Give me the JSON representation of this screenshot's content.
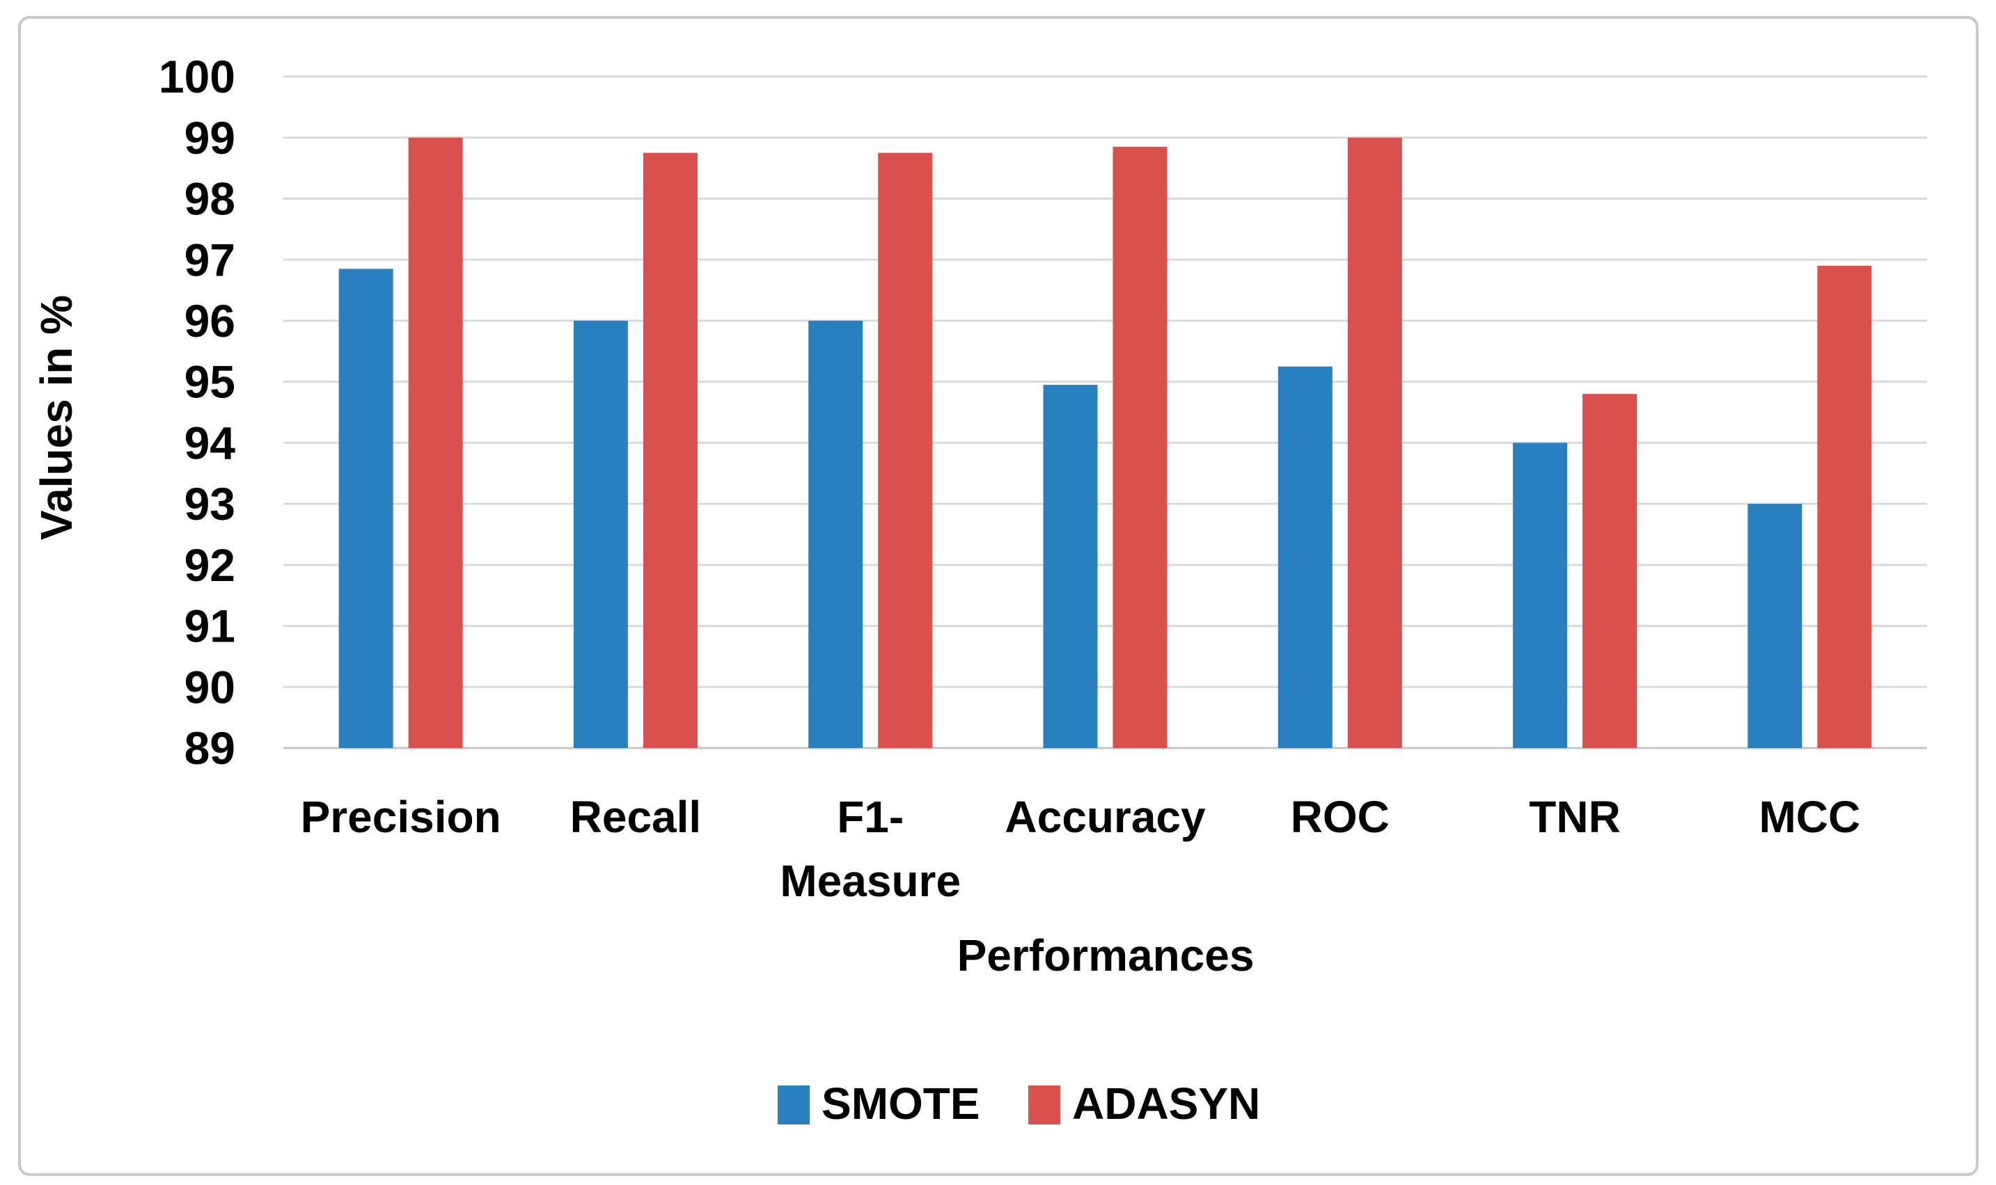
{
  "chart_data": {
    "type": "bar",
    "title": "",
    "categories": [
      "Precision",
      "Recall",
      "F1-Measure",
      "Accuracy",
      "ROC",
      "TNR",
      "MCC"
    ],
    "category_lines": [
      [
        "Precision"
      ],
      [
        "Recall"
      ],
      [
        "F1-",
        "Measure"
      ],
      [
        "Accuracy"
      ],
      [
        "ROC"
      ],
      [
        "TNR"
      ],
      [
        "MCC"
      ]
    ],
    "series": [
      {
        "name": "SMOTE",
        "color": "#2A7FBE",
        "values": [
          96.85,
          96.0,
          96.0,
          94.95,
          95.25,
          94.0,
          93.0
        ]
      },
      {
        "name": "ADASYN",
        "color": "#D9504C",
        "values": [
          99.0,
          98.75,
          98.75,
          98.85,
          99.0,
          94.8,
          96.9
        ]
      }
    ],
    "xlabel": "Performances",
    "ylabel": "Values in %",
    "ylim": [
      89,
      100
    ],
    "yticks": [
      89,
      90,
      91,
      92,
      93,
      94,
      95,
      96,
      97,
      98,
      99,
      100
    ],
    "grid": "horizontal",
    "legend_position": "bottom-center"
  },
  "style": {
    "background": "#FFFFFF",
    "frame_border": "#C9C9C9",
    "gridline": "#D9D9D9",
    "baseline": "#C4C4C4",
    "text": "#000000"
  }
}
